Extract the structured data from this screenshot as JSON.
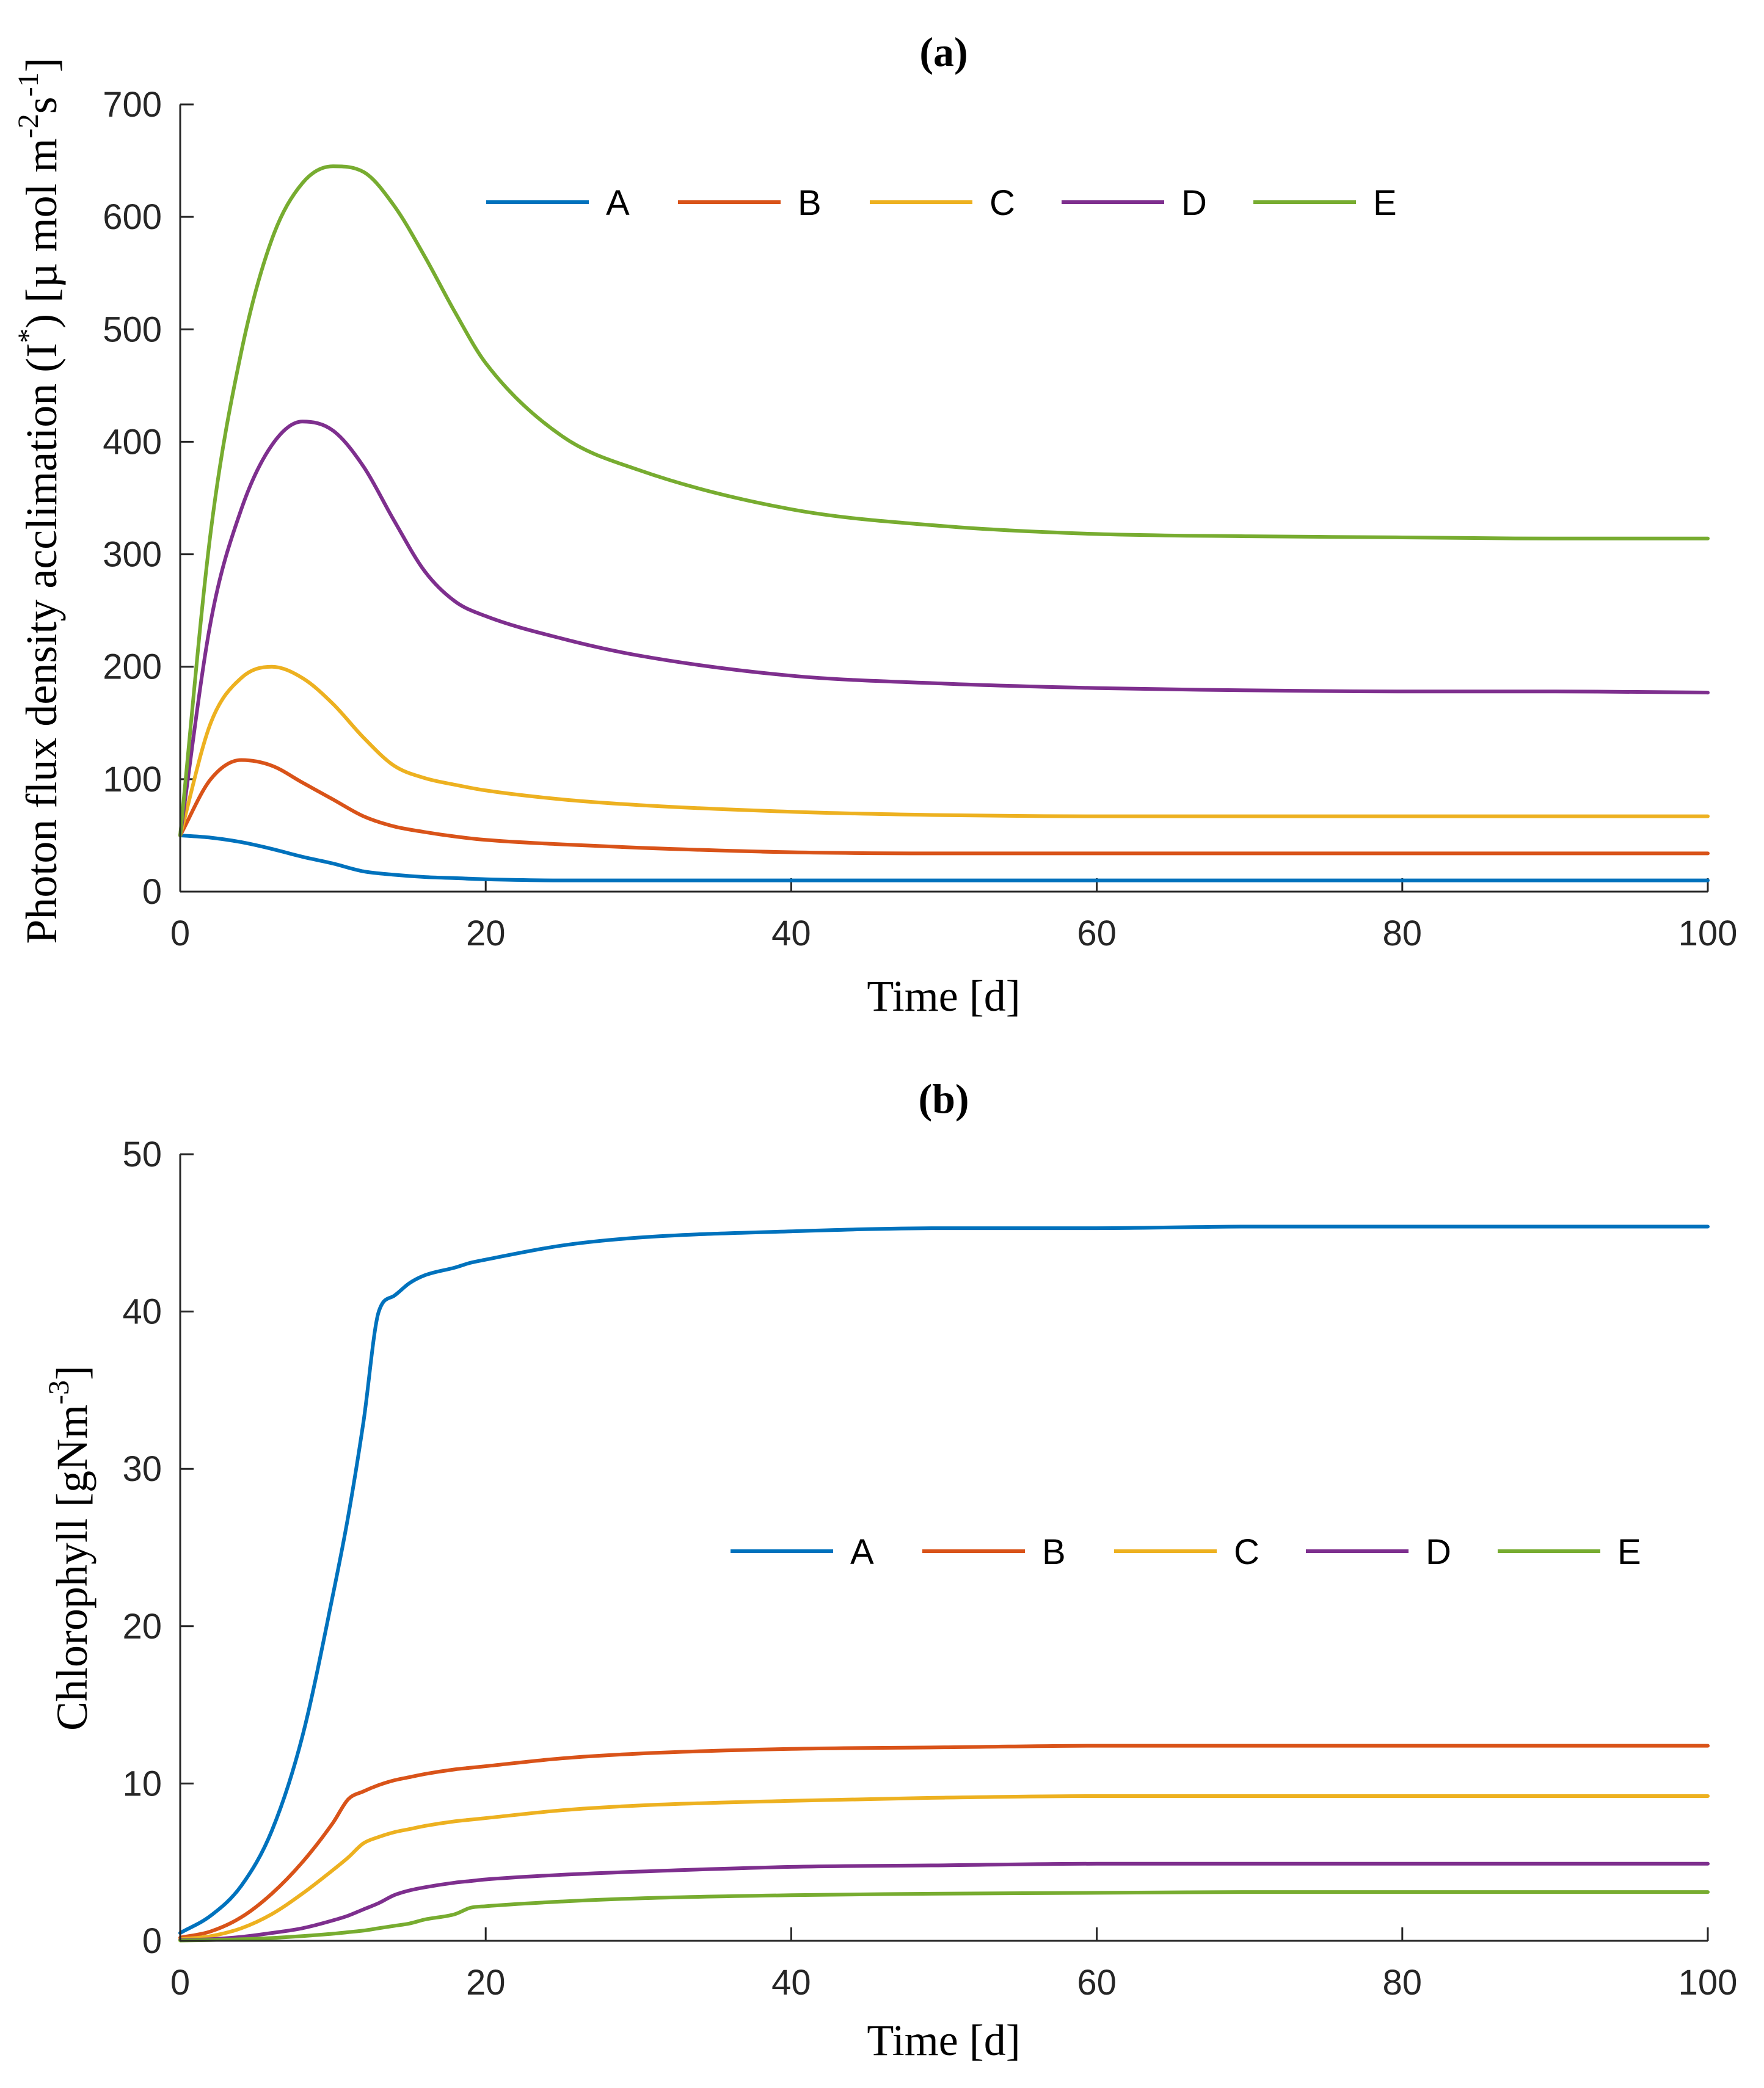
{
  "colors": {
    "A": "#0072BD",
    "B": "#D95319",
    "C": "#EDB120",
    "D": "#7E2F8E",
    "E": "#77AC30"
  },
  "chart_data": [
    {
      "type": "line",
      "title": "(a)",
      "xlabel": "Time [d]",
      "ylabel_main": "Photon flux density acclimation (I",
      "ylabel_sup1": "*",
      "ylabel_mid": ") [µ mol m",
      "ylabel_sup2": "-2",
      "ylabel_s": "s",
      "ylabel_sup3": "-1",
      "ylabel_end": "]",
      "xlim": [
        0,
        100
      ],
      "ylim": [
        0,
        700
      ],
      "xticks": [
        "0",
        "20",
        "40",
        "60",
        "80",
        "100"
      ],
      "yticks": [
        "0",
        "100",
        "200",
        "300",
        "400",
        "500",
        "600",
        "700"
      ],
      "legend": [
        "A",
        "B",
        "C",
        "D",
        "E"
      ],
      "legend_position": "top",
      "x": [
        0,
        2,
        4,
        6,
        8,
        10,
        12,
        14,
        16,
        18,
        20,
        25,
        30,
        40,
        50,
        60,
        70,
        80,
        90,
        100
      ],
      "series": [
        {
          "name": "A",
          "values": [
            50,
            48,
            44,
            38,
            31,
            25,
            18,
            15,
            13,
            12,
            11,
            10,
            10,
            10,
            10,
            10,
            10,
            10,
            10,
            10
          ]
        },
        {
          "name": "B",
          "values": [
            50,
            100,
            117,
            112,
            97,
            82,
            67,
            58,
            53,
            49,
            46,
            42,
            39,
            35,
            34,
            34,
            34,
            34,
            34,
            34
          ]
        },
        {
          "name": "C",
          "values": [
            50,
            150,
            190,
            200,
            190,
            167,
            137,
            112,
            101,
            95,
            90,
            82,
            77,
            71,
            68,
            67,
            67,
            67,
            67,
            67
          ]
        },
        {
          "name": "D",
          "values": [
            50,
            240,
            340,
            397,
            418,
            410,
            378,
            330,
            285,
            258,
            245,
            225,
            210,
            192,
            185,
            181,
            179,
            178,
            178,
            177
          ]
        },
        {
          "name": "E",
          "values": [
            50,
            320,
            480,
            580,
            630,
            645,
            640,
            610,
            565,
            515,
            470,
            405,
            375,
            340,
            325,
            318,
            316,
            315,
            314,
            314
          ]
        }
      ]
    },
    {
      "type": "line",
      "title": "(b)",
      "xlabel": "Time [d]",
      "ylabel_main": "Chlorophyll [gNm",
      "ylabel_sup": "-3",
      "ylabel_end": "]",
      "xlim": [
        0,
        100
      ],
      "ylim": [
        0,
        50
      ],
      "xticks": [
        "0",
        "20",
        "40",
        "60",
        "80",
        "100"
      ],
      "yticks": [
        "0",
        "10",
        "20",
        "30",
        "40",
        "50"
      ],
      "legend": [
        "A",
        "B",
        "C",
        "D",
        "E"
      ],
      "legend_position": "center-right",
      "x": [
        0,
        2,
        4,
        6,
        8,
        10,
        11,
        12,
        13,
        14,
        15,
        16,
        18,
        19,
        20,
        25,
        30,
        40,
        50,
        60,
        70,
        80,
        90,
        100
      ],
      "series": [
        {
          "name": "A",
          "values": [
            0.5,
            1.6,
            3.5,
            7,
            13,
            22,
            27,
            33,
            40,
            41,
            41.8,
            42.3,
            42.8,
            43.1,
            43.3,
            44.2,
            44.7,
            45.1,
            45.3,
            45.3,
            45.4,
            45.4,
            45.4,
            45.4
          ]
        },
        {
          "name": "B",
          "values": [
            0.2,
            0.6,
            1.5,
            3,
            5,
            7.5,
            9,
            9.5,
            9.9,
            10.2,
            10.4,
            10.6,
            10.9,
            11,
            11.1,
            11.6,
            11.9,
            12.2,
            12.3,
            12.4,
            12.4,
            12.4,
            12.4,
            12.4
          ]
        },
        {
          "name": "C",
          "values": [
            0.1,
            0.3,
            0.8,
            1.7,
            3,
            4.5,
            5.3,
            6.2,
            6.6,
            6.9,
            7.1,
            7.3,
            7.6,
            7.7,
            7.8,
            8.3,
            8.6,
            8.9,
            9.1,
            9.2,
            9.2,
            9.2,
            9.2,
            9.2
          ]
        },
        {
          "name": "D",
          "values": [
            0.05,
            0.1,
            0.25,
            0.5,
            0.8,
            1.3,
            1.6,
            2,
            2.4,
            2.9,
            3.2,
            3.4,
            3.7,
            3.8,
            3.9,
            4.2,
            4.4,
            4.7,
            4.8,
            4.9,
            4.9,
            4.9,
            4.9,
            4.9
          ]
        },
        {
          "name": "E",
          "values": [
            0.02,
            0.05,
            0.1,
            0.18,
            0.3,
            0.45,
            0.55,
            0.65,
            0.8,
            0.95,
            1.1,
            1.35,
            1.7,
            2.1,
            2.2,
            2.5,
            2.7,
            2.9,
            3.0,
            3.05,
            3.1,
            3.1,
            3.1,
            3.1
          ]
        }
      ]
    }
  ]
}
